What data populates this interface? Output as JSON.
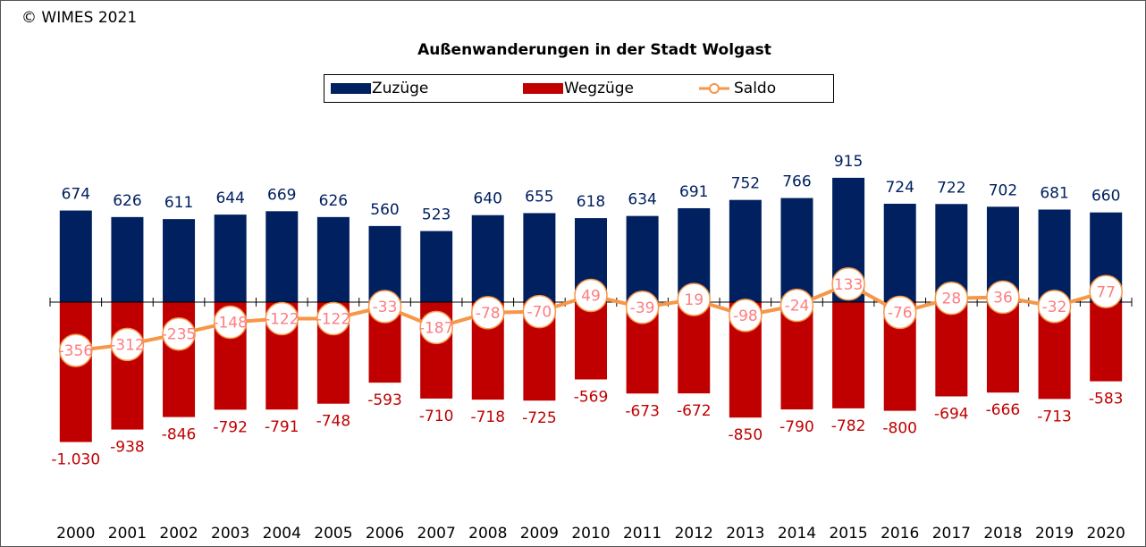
{
  "copyright": "© WIMES 2021",
  "chart_data": {
    "type": "bar",
    "title": "Außenwanderungen in der Stadt Wolgast",
    "categories": [
      "2000",
      "2001",
      "2002",
      "2003",
      "2004",
      "2005",
      "2006",
      "2007",
      "2008",
      "2009",
      "2010",
      "2011",
      "2012",
      "2013",
      "2014",
      "2015",
      "2016",
      "2017",
      "2018",
      "2019",
      "2020"
    ],
    "ylim": [
      -1500,
      1500
    ],
    "series": [
      {
        "name": "Zuzüge",
        "color": "#002060",
        "values": [
          674,
          626,
          611,
          644,
          669,
          626,
          560,
          523,
          640,
          655,
          618,
          634,
          691,
          752,
          766,
          915,
          724,
          722,
          702,
          681,
          660
        ]
      },
      {
        "name": "Wegzüge",
        "color": "#c00000",
        "values": [
          -1030,
          -938,
          -846,
          -792,
          -791,
          -748,
          -593,
          -710,
          -718,
          -725,
          -569,
          -673,
          -672,
          -850,
          -790,
          -782,
          -800,
          -694,
          -666,
          -713,
          -583
        ],
        "value_labels": [
          "-1.030",
          "-938",
          "-846",
          "-792",
          "-791",
          "-748",
          "-593",
          "-710",
          "-718",
          "-725",
          "-569",
          "-673",
          "-672",
          "-850",
          "-790",
          "-782",
          "-800",
          "-694",
          "-666",
          "-713",
          "-583"
        ]
      },
      {
        "name": "Saldo",
        "type": "line",
        "color": "#f79646",
        "label_color": "#ff7c80",
        "values": [
          -356,
          -312,
          -235,
          -148,
          -122,
          -122,
          -33,
          -187,
          -78,
          -70,
          49,
          -39,
          19,
          -98,
          -24,
          133,
          -76,
          28,
          36,
          -32,
          77
        ]
      }
    ]
  }
}
